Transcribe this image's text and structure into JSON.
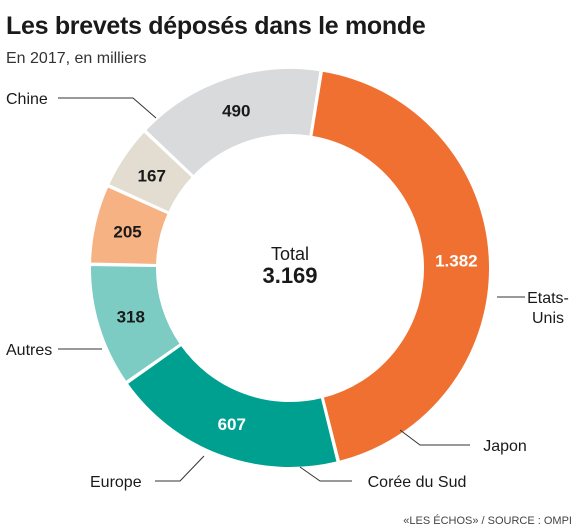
{
  "title": "Les brevets déposés dans le monde",
  "subtitle": "En 2017, en milliers",
  "source": "«LES ÉCHOS» / SOURCE : OMPI",
  "chart_data": {
    "type": "pie",
    "donut": true,
    "center_label": "Total",
    "center_value": "3.169",
    "slices": [
      {
        "name": "Chine",
        "label": "Chine",
        "value": 1382,
        "value_label": "1.382",
        "color": "#ef7030",
        "value_color": "#ffffff"
      },
      {
        "name": "Etats-Unis",
        "label": "Etats-|Unis",
        "value": 607,
        "value_label": "607",
        "color": "#00a090",
        "value_color": "#ffffff"
      },
      {
        "name": "Japon",
        "label": "Japon",
        "value": 318,
        "value_label": "318",
        "color": "#7dccc4",
        "value_color": "#1a1a1a"
      },
      {
        "name": "Corée du Sud",
        "label": "Corée du Sud",
        "value": 205,
        "value_label": "205",
        "color": "#f7b284",
        "value_color": "#1a1a1a"
      },
      {
        "name": "Europe",
        "label": "Europe",
        "value": 167,
        "value_label": "167",
        "color": "#e2ddd0",
        "value_color": "#1a1a1a"
      },
      {
        "name": "Autres",
        "label": "Autres",
        "value": 490,
        "value_label": "490",
        "color": "#d9dadc",
        "value_color": "#1a1a1a"
      }
    ]
  }
}
